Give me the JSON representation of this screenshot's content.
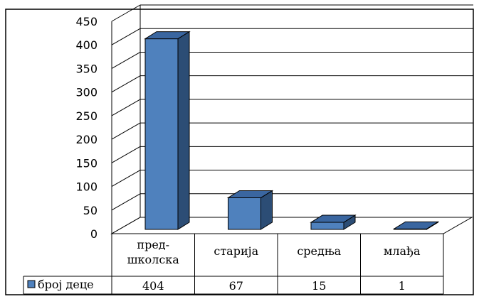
{
  "chart_data": {
    "type": "bar",
    "title": "",
    "xlabel": "",
    "ylabel": "",
    "categories": [
      [
        "пред-",
        "школска"
      ],
      [
        "старија"
      ],
      [
        "средња"
      ],
      [
        "млађа"
      ]
    ],
    "series": [
      {
        "name": "број деце",
        "values": [
          404,
          67,
          15,
          1
        ],
        "labels": [
          "404",
          "67",
          "15",
          "1"
        ],
        "color": "#4f81bd"
      }
    ],
    "ylim": [
      0,
      450
    ],
    "yticks": [
      0,
      50,
      100,
      150,
      200,
      250,
      300,
      350,
      400,
      450
    ],
    "grid": true,
    "three_d": true,
    "legend": "data-table-left"
  }
}
